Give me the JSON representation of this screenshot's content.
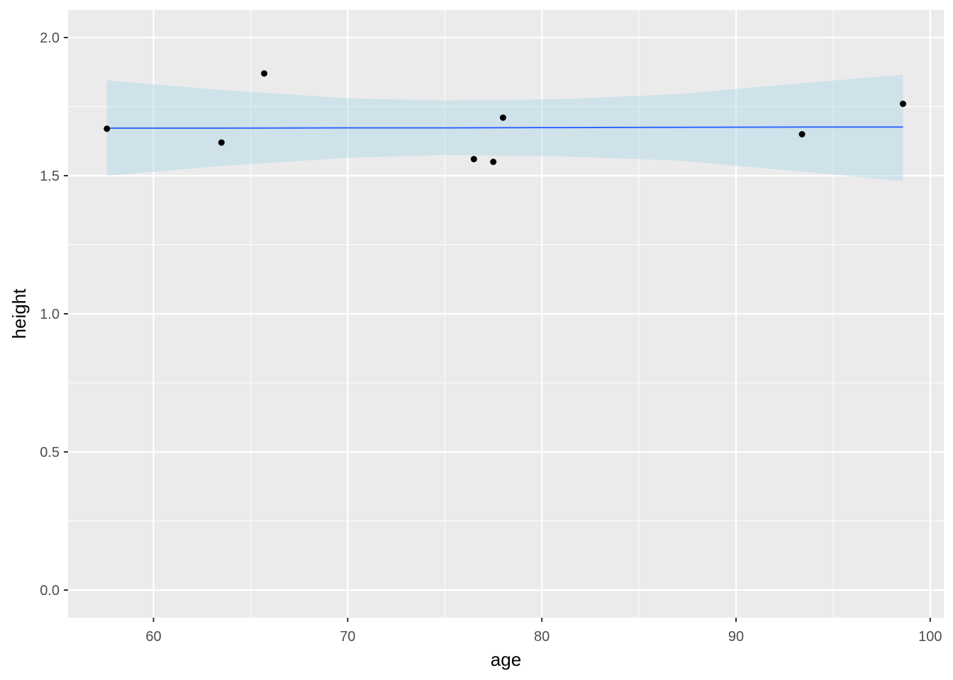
{
  "chart_data": {
    "type": "scatter",
    "title": "",
    "xlabel": "age",
    "ylabel": "height",
    "xlim": [
      55.6,
      100.7
    ],
    "ylim": [
      -0.1,
      2.1
    ],
    "x_ticks": [
      60,
      70,
      80,
      90,
      100
    ],
    "x_tick_labels": [
      "60",
      "70",
      "80",
      "90",
      "100"
    ],
    "y_ticks": [
      0,
      0.5,
      1,
      1.5,
      2
    ],
    "y_tick_labels": [
      "0.0",
      "0.5",
      "1.0",
      "1.5",
      "2.0"
    ],
    "grid": true,
    "points": [
      {
        "x": 57.6,
        "y": 1.67
      },
      {
        "x": 63.5,
        "y": 1.62
      },
      {
        "x": 65.7,
        "y": 1.87
      },
      {
        "x": 76.5,
        "y": 1.56
      },
      {
        "x": 77.5,
        "y": 1.55
      },
      {
        "x": 78.0,
        "y": 1.71
      },
      {
        "x": 93.4,
        "y": 1.65
      },
      {
        "x": 98.6,
        "y": 1.76
      }
    ],
    "smooth": {
      "method": "linear fit with confidence band",
      "x": [
        57.6,
        63.5,
        70.0,
        75.0,
        81.0,
        87.0,
        93.4,
        98.6
      ],
      "y": [
        1.672,
        1.672,
        1.673,
        1.673,
        1.674,
        1.675,
        1.676,
        1.676
      ],
      "lower": [
        1.5,
        1.535,
        1.565,
        1.575,
        1.57,
        1.555,
        1.515,
        1.48
      ],
      "upper": [
        1.845,
        1.81,
        1.78,
        1.772,
        1.777,
        1.795,
        1.835,
        1.865
      ]
    },
    "colors": {
      "panel_background": "#EBEBEB",
      "grid_major": "#FFFFFF",
      "point": "#000000",
      "line": "#3366FF",
      "band": "#ADD8E6"
    }
  }
}
